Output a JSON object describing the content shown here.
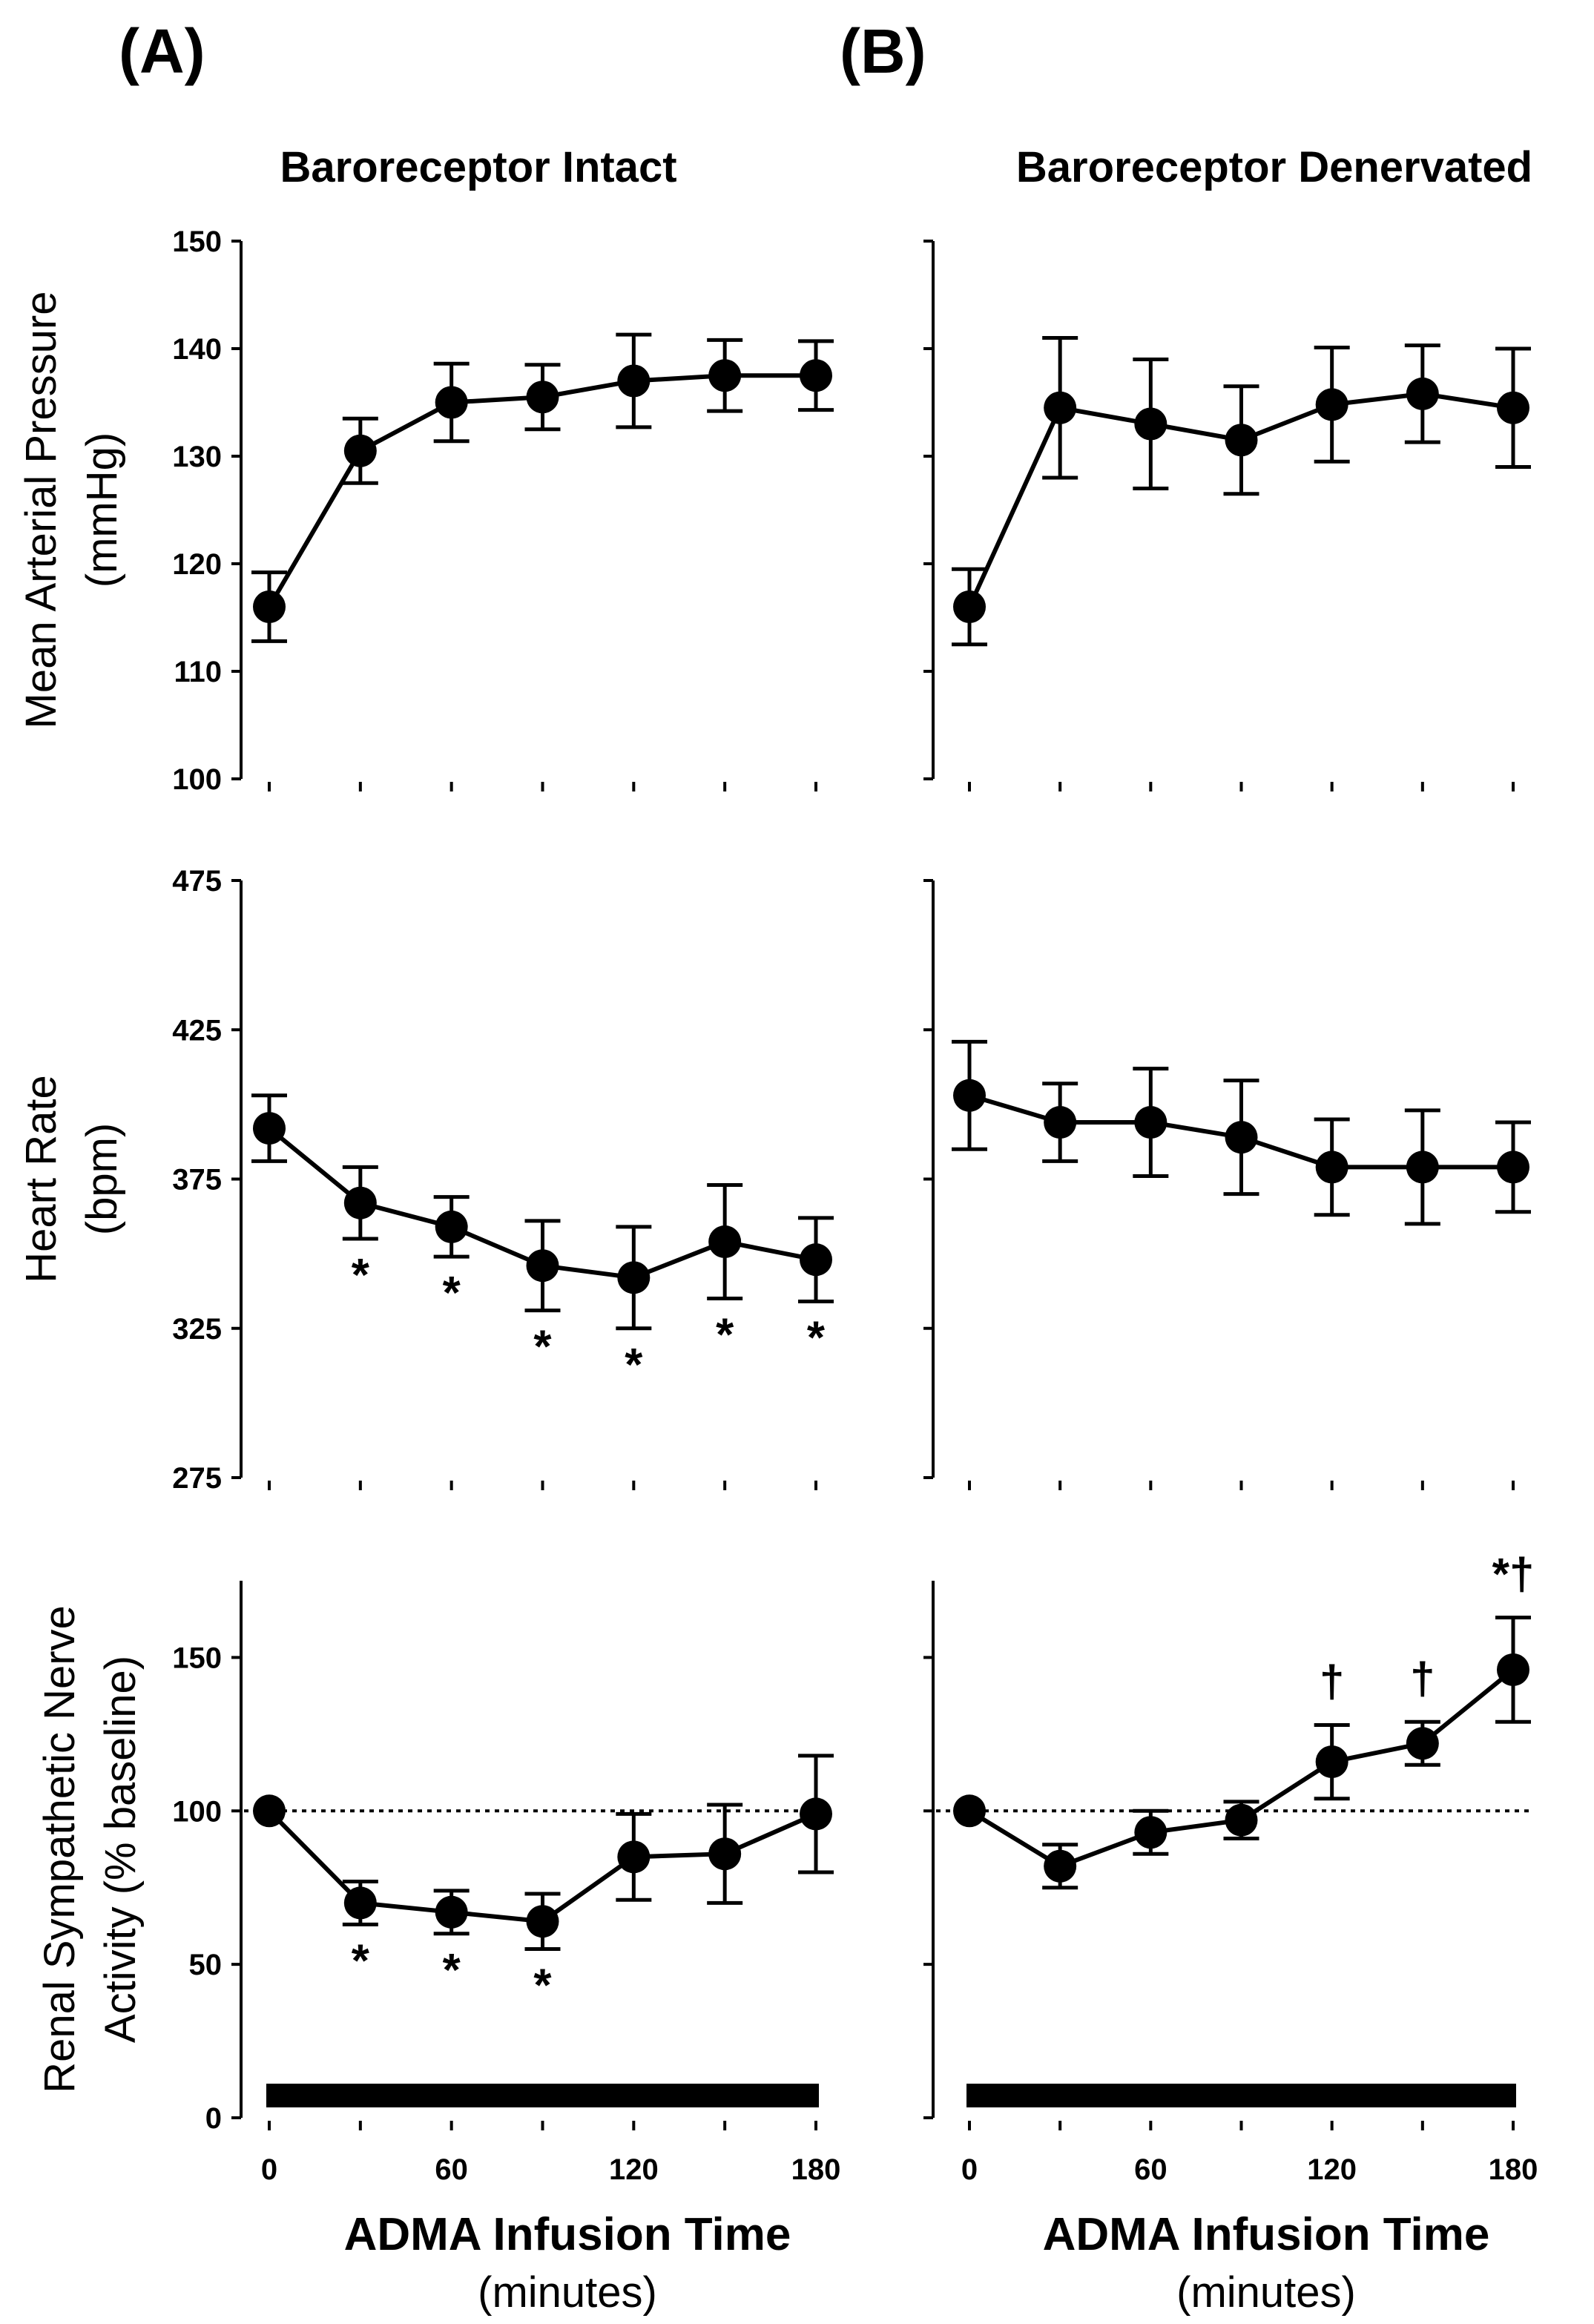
{
  "panel_letters": {
    "left": "(A)",
    "right": "(B)"
  },
  "column_titles": {
    "left": "Baroreceptor Intact",
    "right": "Baroreceptor Denervated"
  },
  "x_axis": {
    "label": "ADMA Infusion Time",
    "sublabel": "(minutes)",
    "ticks": [
      "0",
      "60",
      "120",
      "180"
    ]
  },
  "chart_data": [
    {
      "type": "line",
      "panel": "A",
      "row": 1,
      "ylabel": "Mean Arterial Pressure",
      "ylabel_unit": "(mmHg)",
      "ylim": [
        100,
        150
      ],
      "yticks": [
        100,
        110,
        120,
        130,
        140,
        150
      ],
      "x": [
        0,
        30,
        60,
        90,
        120,
        150,
        180
      ],
      "series": [
        {
          "values": [
            116,
            130.5,
            135,
            135.5,
            137,
            137.5,
            137.5
          ],
          "errors": [
            3.2,
            3,
            3.6,
            3,
            4.3,
            3.3,
            3.2
          ]
        }
      ],
      "annotations": []
    },
    {
      "type": "line",
      "panel": "B",
      "row": 1,
      "ylabel": "",
      "ylabel_unit": "",
      "ylim": [
        100,
        150
      ],
      "yticks": [
        100,
        110,
        120,
        130,
        140,
        150
      ],
      "x": [
        0,
        30,
        60,
        90,
        120,
        150,
        180
      ],
      "series": [
        {
          "values": [
            116,
            134.5,
            133,
            131.5,
            134.8,
            135.8,
            134.5
          ],
          "errors": [
            3.5,
            6.5,
            6,
            5,
            5.3,
            4.5,
            5.5
          ]
        }
      ],
      "annotations": []
    },
    {
      "type": "line",
      "panel": "A",
      "row": 2,
      "ylabel": "Heart Rate",
      "ylabel_unit": "(bpm)",
      "ylim": [
        275,
        475
      ],
      "yticks": [
        275,
        325,
        375,
        425,
        475
      ],
      "x": [
        0,
        30,
        60,
        90,
        120,
        150,
        180
      ],
      "series": [
        {
          "values": [
            392,
            367,
            359,
            346,
            342,
            354,
            348
          ],
          "errors": [
            11,
            12,
            10,
            15,
            17,
            19,
            14
          ]
        }
      ],
      "annotations": [
        {
          "x": 30,
          "text": "*"
        },
        {
          "x": 60,
          "text": "*"
        },
        {
          "x": 90,
          "text": "*"
        },
        {
          "x": 120,
          "text": "*"
        },
        {
          "x": 150,
          "text": "*"
        },
        {
          "x": 180,
          "text": "*"
        }
      ]
    },
    {
      "type": "line",
      "panel": "B",
      "row": 2,
      "ylabel": "",
      "ylabel_unit": "",
      "ylim": [
        275,
        475
      ],
      "yticks": [
        275,
        325,
        375,
        425,
        475
      ],
      "x": [
        0,
        30,
        60,
        90,
        120,
        150,
        180
      ],
      "series": [
        {
          "values": [
            403,
            394,
            394,
            389,
            379,
            379,
            379
          ],
          "errors": [
            18,
            13,
            18,
            19,
            16,
            19,
            15
          ]
        }
      ],
      "annotations": []
    },
    {
      "type": "line",
      "panel": "A",
      "row": 3,
      "ylabel": "Renal Sympathetic Nerve",
      "ylabel_unit": "Activity (% baseline)",
      "ylim": [
        0,
        175
      ],
      "yticks": [
        0,
        50,
        100,
        150
      ],
      "reference_line": 100,
      "x": [
        0,
        30,
        60,
        90,
        120,
        150,
        180
      ],
      "series": [
        {
          "values": [
            100,
            70,
            67,
            64,
            85,
            86,
            99
          ],
          "errors": [
            0,
            7,
            7,
            9,
            14,
            16,
            19
          ]
        }
      ],
      "annotations": [
        {
          "x": 30,
          "text": "*"
        },
        {
          "x": 60,
          "text": "*"
        },
        {
          "x": 90,
          "text": "*"
        }
      ],
      "infusion_bar": [
        0,
        180
      ]
    },
    {
      "type": "line",
      "panel": "B",
      "row": 3,
      "ylabel": "",
      "ylabel_unit": "",
      "ylim": [
        0,
        175
      ],
      "yticks": [
        0,
        50,
        100,
        150
      ],
      "reference_line": 100,
      "x": [
        0,
        30,
        60,
        90,
        120,
        150,
        180
      ],
      "series": [
        {
          "values": [
            100,
            82,
            93,
            97,
            116,
            122,
            146
          ],
          "errors": [
            0,
            7,
            7,
            6,
            12,
            7,
            17
          ]
        }
      ],
      "annotations": [
        {
          "x": 120,
          "text": "†"
        },
        {
          "x": 150,
          "text": "†"
        },
        {
          "x": 180,
          "text": "*†"
        }
      ],
      "infusion_bar": [
        0,
        180
      ]
    }
  ]
}
